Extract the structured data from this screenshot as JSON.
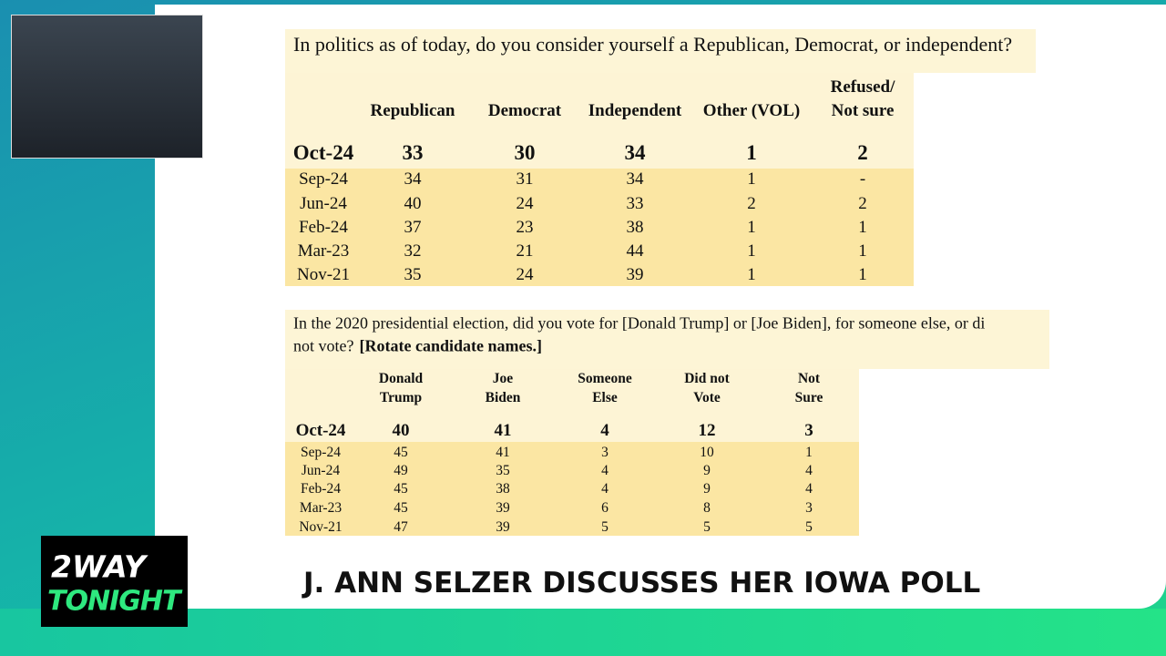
{
  "table1": {
    "question": "In politics as of today, do you consider yourself a Republican, Democrat, or independent?",
    "headers": [
      [
        "Republican"
      ],
      [
        "Democrat"
      ],
      [
        "Independent"
      ],
      [
        "Other (VOL)"
      ],
      [
        "Refused/",
        "Not sure"
      ]
    ],
    "rows": [
      [
        "Oct-24",
        33,
        30,
        34,
        1,
        2
      ],
      [
        "Sep-24",
        34,
        31,
        34,
        1,
        "-"
      ],
      [
        "Jun-24",
        40,
        24,
        33,
        2,
        2
      ],
      [
        "Feb-24",
        37,
        23,
        38,
        1,
        1
      ],
      [
        "Mar-23",
        32,
        21,
        44,
        1,
        1
      ],
      [
        "Nov-21",
        35,
        24,
        39,
        1,
        1
      ]
    ]
  },
  "table2": {
    "question": [
      "In the 2020 presidential election, did you vote for [Donald Trump] or [Joe Biden], for someone else, or di",
      "not vote?"
    ],
    "instruction": "[Rotate candidate names.]",
    "headers": [
      [
        "Donald",
        "Trump"
      ],
      [
        "Joe",
        "Biden"
      ],
      [
        "Someone",
        "Else"
      ],
      [
        "Did not",
        "Vote"
      ],
      [
        "Not",
        "Sure"
      ]
    ],
    "rows": [
      [
        "Oct-24",
        40,
        41,
        4,
        12,
        3
      ],
      [
        "Sep-24",
        45,
        41,
        3,
        10,
        1
      ],
      [
        "Jun-24",
        49,
        35,
        4,
        9,
        4
      ],
      [
        "Feb-24",
        45,
        38,
        4,
        9,
        4
      ],
      [
        "Mar-23",
        45,
        39,
        6,
        8,
        3
      ],
      [
        "Nov-21",
        47,
        39,
        5,
        5,
        5
      ]
    ]
  },
  "logo": {
    "line1": "2WAY",
    "line2": "TONIGHT"
  },
  "caption": "J. ANN SELZER DISCUSSES HER IOWA POLL"
}
